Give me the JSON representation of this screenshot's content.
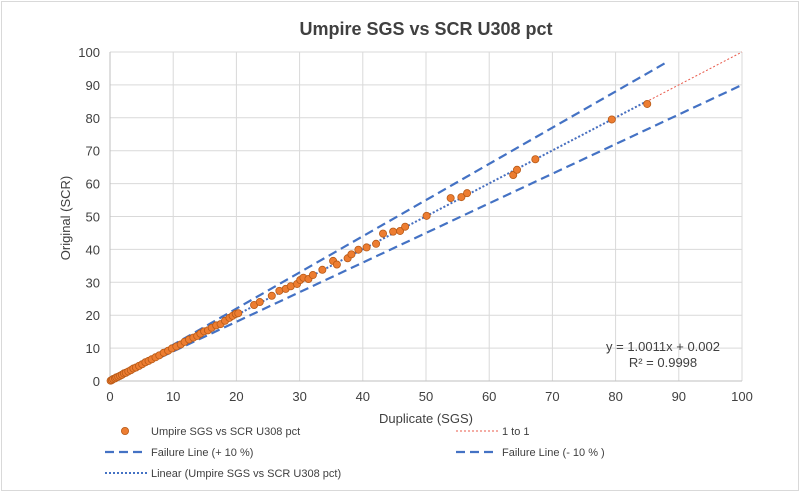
{
  "chart_data": {
    "type": "scatter",
    "title": "Umpire SGS vs SCR U308 pct",
    "xlabel": "Duplicate (SGS)",
    "ylabel": "Original (SCR)",
    "xlim": [
      0,
      100
    ],
    "ylim": [
      0,
      100
    ],
    "xticks": [
      0,
      10,
      20,
      30,
      40,
      50,
      60,
      70,
      80,
      90,
      100
    ],
    "yticks": [
      0,
      10,
      20,
      30,
      40,
      50,
      60,
      70,
      80,
      90,
      100
    ],
    "grid": true,
    "series": [
      {
        "name": "Umpire SGS vs SCR U308 pct",
        "kind": "scatter",
        "color": "#ed7d31",
        "points": [
          [
            0.1,
            0.1
          ],
          [
            0.3,
            0.3
          ],
          [
            0.5,
            0.6
          ],
          [
            0.8,
            0.8
          ],
          [
            1.0,
            1.1
          ],
          [
            1.3,
            1.3
          ],
          [
            1.6,
            1.6
          ],
          [
            1.9,
            1.9
          ],
          [
            2.2,
            2.3
          ],
          [
            2.5,
            2.5
          ],
          [
            2.9,
            2.9
          ],
          [
            3.3,
            3.3
          ],
          [
            3.7,
            3.8
          ],
          [
            4.1,
            4.1
          ],
          [
            4.6,
            4.6
          ],
          [
            5.1,
            5.1
          ],
          [
            5.6,
            5.7
          ],
          [
            6.1,
            6.1
          ],
          [
            6.6,
            6.6
          ],
          [
            7.2,
            7.2
          ],
          [
            7.8,
            7.8
          ],
          [
            8.5,
            8.6
          ],
          [
            9.2,
            9.2
          ],
          [
            9.8,
            9.9
          ],
          [
            10.5,
            10.5
          ],
          [
            11.2,
            11.1
          ],
          [
            11.8,
            11.9
          ],
          [
            12.5,
            12.6
          ],
          [
            13.2,
            13.2
          ],
          [
            13.8,
            13.7
          ],
          [
            14.3,
            14.4
          ],
          [
            14.9,
            15.1
          ],
          [
            15.5,
            15.4
          ],
          [
            16.1,
            16.2
          ],
          [
            16.8,
            16.9
          ],
          [
            17.5,
            17.3
          ],
          [
            18.2,
            18.3
          ],
          [
            18.9,
            19.2
          ],
          [
            19.4,
            19.8
          ],
          [
            19.9,
            20.4
          ],
          [
            20.3,
            20.6
          ],
          [
            22.8,
            23.1
          ],
          [
            23.7,
            24.0
          ],
          [
            25.6,
            25.9
          ],
          [
            26.8,
            27.4
          ],
          [
            27.8,
            28.0
          ],
          [
            28.6,
            28.8
          ],
          [
            29.6,
            29.5
          ],
          [
            30.1,
            30.7
          ],
          [
            30.6,
            31.4
          ],
          [
            31.4,
            31.0
          ],
          [
            32.1,
            32.2
          ],
          [
            33.6,
            33.8
          ],
          [
            35.3,
            36.5
          ],
          [
            35.9,
            35.4
          ],
          [
            37.6,
            37.3
          ],
          [
            38.2,
            38.5
          ],
          [
            39.3,
            39.9
          ],
          [
            40.6,
            40.6
          ],
          [
            42.1,
            41.7
          ],
          [
            43.2,
            44.8
          ],
          [
            44.8,
            45.4
          ],
          [
            45.9,
            45.6
          ],
          [
            46.7,
            46.9
          ],
          [
            50.1,
            50.2
          ],
          [
            53.9,
            55.6
          ],
          [
            55.6,
            55.9
          ],
          [
            56.5,
            57.1
          ],
          [
            63.8,
            62.6
          ],
          [
            64.4,
            64.2
          ],
          [
            67.3,
            67.4
          ],
          [
            79.4,
            79.5
          ],
          [
            85.0,
            84.2
          ]
        ]
      },
      {
        "name": "1 to 1",
        "kind": "line",
        "color": "#e8594a",
        "dash": "dot-red",
        "slope": 1.0,
        "intercept": 0,
        "x_range": [
          0,
          100
        ]
      },
      {
        "name": "Failure Line (+ 10 %)",
        "kind": "line",
        "color": "#4472c4",
        "dash": "dash",
        "slope": 1.1,
        "intercept": 0,
        "x_range": [
          0,
          88
        ]
      },
      {
        "name": "Failure Line (- 10 % )",
        "kind": "line",
        "color": "#4472c4",
        "dash": "dash",
        "slope": 0.9,
        "intercept": 0,
        "x_range": [
          0,
          100
        ]
      },
      {
        "name": "Linear (Umpire SGS vs SCR U308 pct)",
        "kind": "line",
        "color": "#4472c4",
        "dash": "dot",
        "slope": 1.0011,
        "intercept": 0.002,
        "x_range": [
          0,
          85
        ]
      }
    ],
    "annotations": {
      "equation": "y = 1.0011x + 0.002",
      "r_squared": "R² = 0.9998"
    },
    "legend_position": "bottom"
  }
}
